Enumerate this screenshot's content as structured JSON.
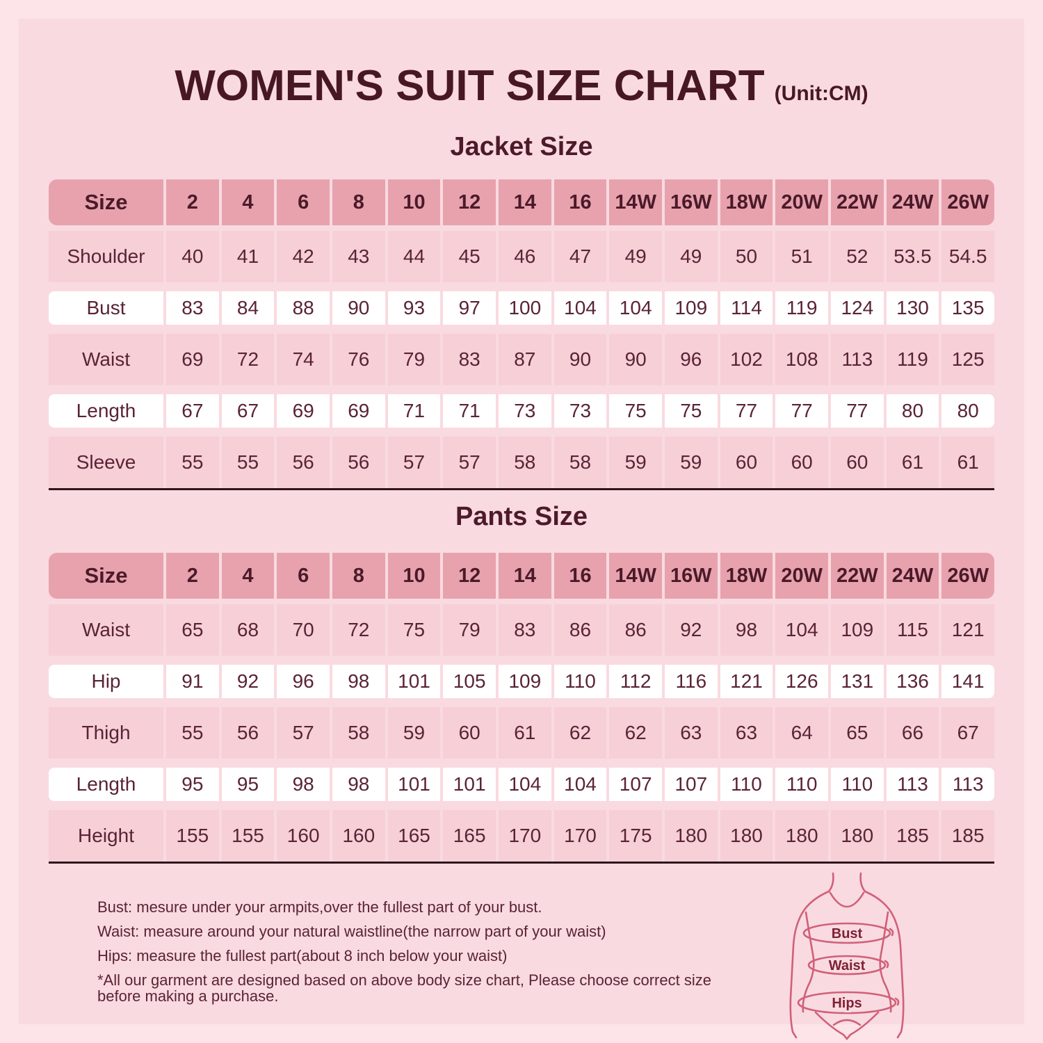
{
  "header": {
    "title": "WOMEN'S SUIT SIZE CHART",
    "unit": "(Unit:CM)"
  },
  "colors": {
    "page_background": "#fce4e9",
    "panel_background": "#f9dae0",
    "header_row": "#e7a2ae",
    "pink_row": "#f6cfd7",
    "white_row": "#ffffff",
    "dark_text": "#4d1c2b",
    "separator_line": "#2e141d",
    "figure_line": "#d06078"
  },
  "chart_data": [
    {
      "type": "table",
      "title": "Jacket Size",
      "columns": [
        "Size",
        "2",
        "4",
        "6",
        "8",
        "10",
        "12",
        "14",
        "16",
        "14W",
        "16W",
        "18W",
        "20W",
        "22W",
        "24W",
        "26W"
      ],
      "rows": [
        {
          "label": "Shoulder",
          "white": false,
          "values": [
            "40",
            "41",
            "42",
            "43",
            "44",
            "45",
            "46",
            "47",
            "49",
            "49",
            "50",
            "51",
            "52",
            "53.5",
            "54.5"
          ]
        },
        {
          "label": "Bust",
          "white": true,
          "values": [
            "83",
            "84",
            "88",
            "90",
            "93",
            "97",
            "100",
            "104",
            "104",
            "109",
            "114",
            "119",
            "124",
            "130",
            "135"
          ]
        },
        {
          "label": "Waist",
          "white": false,
          "values": [
            "69",
            "72",
            "74",
            "76",
            "79",
            "83",
            "87",
            "90",
            "90",
            "96",
            "102",
            "108",
            "113",
            "119",
            "125"
          ]
        },
        {
          "label": "Length",
          "white": true,
          "values": [
            "67",
            "67",
            "69",
            "69",
            "71",
            "71",
            "73",
            "73",
            "75",
            "75",
            "77",
            "77",
            "77",
            "80",
            "80"
          ]
        },
        {
          "label": "Sleeve",
          "white": false,
          "values": [
            "55",
            "55",
            "56",
            "56",
            "57",
            "57",
            "58",
            "58",
            "59",
            "59",
            "60",
            "60",
            "60",
            "61",
            "61"
          ]
        }
      ]
    },
    {
      "type": "table",
      "title": "Pants Size",
      "columns": [
        "Size",
        "2",
        "4",
        "6",
        "8",
        "10",
        "12",
        "14",
        "16",
        "14W",
        "16W",
        "18W",
        "20W",
        "22W",
        "24W",
        "26W"
      ],
      "rows": [
        {
          "label": "Waist",
          "white": false,
          "values": [
            "65",
            "68",
            "70",
            "72",
            "75",
            "79",
            "83",
            "86",
            "86",
            "92",
            "98",
            "104",
            "109",
            "115",
            "121"
          ]
        },
        {
          "label": "Hip",
          "white": true,
          "values": [
            "91",
            "92",
            "96",
            "98",
            "101",
            "105",
            "109",
            "110",
            "112",
            "116",
            "121",
            "126",
            "131",
            "136",
            "141"
          ]
        },
        {
          "label": "Thigh",
          "white": false,
          "values": [
            "55",
            "56",
            "57",
            "58",
            "59",
            "60",
            "61",
            "62",
            "62",
            "63",
            "63",
            "64",
            "65",
            "66",
            "67"
          ]
        },
        {
          "label": "Length",
          "white": true,
          "values": [
            "95",
            "95",
            "98",
            "98",
            "101",
            "101",
            "104",
            "104",
            "107",
            "107",
            "110",
            "110",
            "110",
            "113",
            "113"
          ]
        },
        {
          "label": "Height",
          "white": false,
          "values": [
            "155",
            "155",
            "160",
            "160",
            "165",
            "165",
            "170",
            "170",
            "175",
            "180",
            "180",
            "180",
            "180",
            "185",
            "185"
          ]
        }
      ]
    }
  ],
  "notes": [
    "Bust: mesure under your armpits,over the fullest part of your bust.",
    "Waist: measure around your natural waistline(the narrow part of your waist)",
    "Hips: measure the fullest part(about 8 inch below your waist)",
    "*All our garment are designed based on above body size chart, Please choose correct size before making a purchase."
  ],
  "figure": {
    "labels": [
      "Bust",
      "Waist",
      "Hips"
    ]
  }
}
